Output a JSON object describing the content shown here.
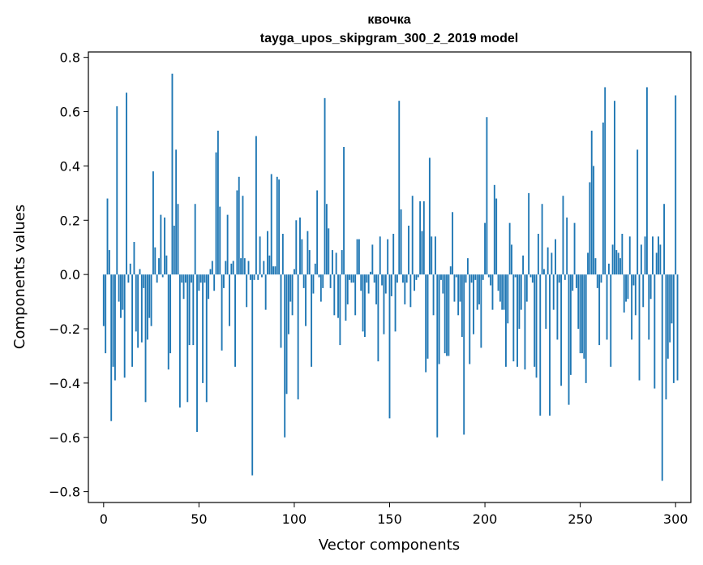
{
  "chart_data": {
    "type": "bar",
    "title": "квочка",
    "subtitle": "tayga_upos_skipgram_300_2_2019 model",
    "xlabel": "Vector components",
    "ylabel": "Components values",
    "xlim": [
      -8,
      308
    ],
    "ylim": [
      -0.84,
      0.82
    ],
    "xticks": [
      0,
      50,
      100,
      150,
      200,
      250,
      300
    ],
    "xtick_labels": [
      "0",
      "50",
      "100",
      "150",
      "200",
      "250",
      "300"
    ],
    "yticks": [
      -0.8,
      -0.6,
      -0.4,
      -0.2,
      0.0,
      0.2,
      0.4,
      0.6,
      0.8
    ],
    "ytick_labels": [
      "−0.8",
      "−0.6",
      "−0.4",
      "−0.2",
      "0.0",
      "0.2",
      "0.4",
      "0.6",
      "0.8"
    ],
    "bar_color": "#1f77b4",
    "grid": false,
    "values": [
      -0.19,
      -0.29,
      0.28,
      0.09,
      -0.54,
      -0.34,
      -0.39,
      0.62,
      -0.1,
      -0.16,
      -0.13,
      -0.38,
      0.67,
      -0.03,
      0.04,
      -0.34,
      0.12,
      -0.21,
      -0.27,
      0.02,
      -0.25,
      -0.05,
      -0.47,
      -0.24,
      -0.16,
      -0.19,
      0.38,
      0.1,
      -0.03,
      0.06,
      0.22,
      -0.01,
      0.21,
      0.07,
      -0.35,
      -0.29,
      0.74,
      0.18,
      0.46,
      0.26,
      -0.49,
      -0.03,
      -0.09,
      -0.03,
      -0.47,
      -0.26,
      -0.03,
      -0.26,
      0.26,
      -0.58,
      -0.06,
      -0.03,
      -0.4,
      -0.03,
      -0.47,
      -0.09,
      0.02,
      0.05,
      -0.06,
      0.45,
      0.53,
      0.25,
      -0.28,
      -0.05,
      0.05,
      0.22,
      -0.19,
      0.04,
      0.05,
      -0.34,
      0.31,
      0.36,
      0.06,
      0.29,
      0.06,
      -0.12,
      0.05,
      -0.02,
      -0.74,
      -0.02,
      0.51,
      -0.02,
      0.14,
      -0.01,
      0.05,
      -0.13,
      0.16,
      0.07,
      0.37,
      0.03,
      0.03,
      0.36,
      0.35,
      -0.27,
      0.15,
      -0.6,
      -0.44,
      -0.22,
      -0.1,
      -0.15,
      0.02,
      0.2,
      -0.46,
      0.21,
      0.13,
      -0.05,
      -0.19,
      0.16,
      0.09,
      -0.34,
      -0.07,
      0.04,
      0.31,
      -0.01,
      -0.1,
      -0.05,
      0.65,
      0.26,
      0.17,
      -0.05,
      0.09,
      -0.15,
      0.08,
      -0.16,
      -0.26,
      0.09,
      0.47,
      -0.17,
      -0.11,
      -0.02,
      -0.03,
      -0.03,
      -0.15,
      0.13,
      0.13,
      -0.06,
      -0.21,
      -0.23,
      -0.03,
      -0.07,
      0.01,
      0.11,
      -0.03,
      -0.11,
      -0.32,
      0.14,
      -0.04,
      -0.22,
      -0.07,
      0.13,
      -0.53,
      -0.08,
      0.15,
      -0.21,
      -0.03,
      0.64,
      0.24,
      -0.03,
      -0.11,
      -0.03,
      0.18,
      -0.12,
      0.29,
      -0.06,
      -0.02,
      -0.01,
      0.27,
      0.16,
      0.27,
      -0.36,
      -0.31,
      0.43,
      0.14,
      -0.15,
      0.14,
      -0.6,
      -0.33,
      -0.02,
      -0.07,
      -0.29,
      -0.3,
      -0.3,
      0.03,
      0.23,
      -0.1,
      -0.01,
      -0.15,
      -0.1,
      -0.23,
      -0.59,
      -0.03,
      0.06,
      -0.33,
      -0.03,
      -0.22,
      -0.02,
      -0.13,
      -0.11,
      -0.27,
      -0.02,
      0.19,
      0.58,
      -0.01,
      -0.04,
      -0.13,
      0.33,
      0.28,
      -0.06,
      -0.1,
      -0.13,
      -0.13,
      -0.34,
      -0.18,
      0.19,
      0.11,
      -0.32,
      -0.01,
      -0.34,
      -0.2,
      -0.13,
      0.07,
      -0.35,
      -0.1,
      0.3,
      -0.01,
      -0.03,
      -0.34,
      -0.38,
      0.15,
      -0.52,
      0.26,
      0.02,
      -0.2,
      0.1,
      -0.52,
      0.08,
      -0.13,
      0.13,
      -0.24,
      -0.03,
      -0.41,
      0.29,
      -0.02,
      0.21,
      -0.48,
      -0.37,
      -0.06,
      0.19,
      -0.05,
      -0.2,
      -0.29,
      -0.29,
      -0.31,
      -0.4,
      0.08,
      0.34,
      0.53,
      0.4,
      0.06,
      -0.05,
      -0.26,
      -0.03,
      0.56,
      0.69,
      -0.24,
      0.04,
      -0.34,
      0.11,
      0.64,
      0.09,
      0.08,
      0.06,
      0.15,
      -0.14,
      -0.1,
      -0.09,
      0.14,
      -0.24,
      -0.04,
      -0.15,
      0.46,
      -0.39,
      0.11,
      -0.12,
      0.14,
      0.69,
      -0.24,
      -0.09,
      0.14,
      -0.42,
      0.08,
      0.14,
      0.11,
      -0.76,
      0.26,
      -0.46,
      -0.31,
      -0.25,
      -0.18,
      -0.4,
      0.66,
      -0.39
    ]
  }
}
